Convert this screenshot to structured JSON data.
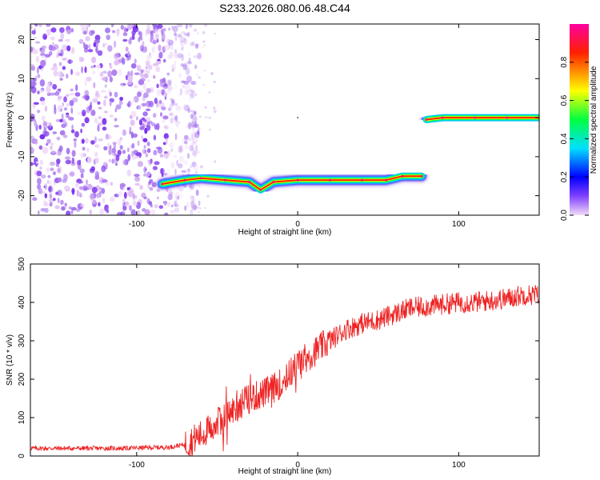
{
  "title": "S233.2026.080.06.48.C44",
  "chart_data": [
    {
      "type": "heatmap",
      "xlabel": "Height of straight line (km)",
      "ylabel": "Frequency (Hz)",
      "xlim": [
        -166,
        150
      ],
      "ylim": [
        -25,
        24
      ],
      "x_ticks": [
        -100,
        0,
        100
      ],
      "y_ticks": [
        20,
        10,
        0,
        -10,
        -20
      ],
      "colorbar": {
        "label": "Normalized spectral amplitude",
        "range": [
          0.0,
          1.0
        ],
        "ticks": [
          "0.0",
          "0.2",
          "0.4",
          "0.6",
          "0.8"
        ],
        "colormap": [
          "#f2dcf7",
          "#8040ff",
          "#0000ff",
          "#00e0ff",
          "#00ff40",
          "#ffff00",
          "#ff2000",
          "#ff00a0"
        ]
      },
      "ridge": [
        {
          "x": -84,
          "y": -17
        },
        {
          "x": -70,
          "y": -16
        },
        {
          "x": -60,
          "y": -15.5
        },
        {
          "x": -45,
          "y": -16
        },
        {
          "x": -30,
          "y": -16.5
        },
        {
          "x": -23,
          "y": -18.5
        },
        {
          "x": -15,
          "y": -16.5
        },
        {
          "x": 0,
          "y": -16
        },
        {
          "x": 20,
          "y": -16
        },
        {
          "x": 40,
          "y": -16
        },
        {
          "x": 55,
          "y": -16
        },
        {
          "x": 65,
          "y": -15
        },
        {
          "x": 77,
          "y": -15
        },
        {
          "x": 80,
          "y": -0.5
        },
        {
          "x": 90,
          "y": 0
        },
        {
          "x": 110,
          "y": 0
        },
        {
          "x": 130,
          "y": 0
        },
        {
          "x": 150,
          "y": 0
        }
      ],
      "noise_region": {
        "x": [
          -166,
          -66
        ],
        "y": [
          -25,
          24
        ]
      }
    },
    {
      "type": "line",
      "xlabel": "Height of straight line (km)",
      "ylabel": "SNR (10 * v/v)",
      "xlim": [
        -166,
        150
      ],
      "ylim": [
        0,
        500
      ],
      "x_ticks": [
        -100,
        0,
        100
      ],
      "y_ticks": [
        0,
        100,
        200,
        300,
        400,
        500
      ],
      "color": "#ee2222",
      "series": [
        {
          "x": [
            -166,
            -150,
            -130,
            -110,
            -90,
            -80,
            -70,
            -60,
            -50,
            -40,
            -30,
            -20,
            -10,
            0,
            10,
            20,
            30,
            40,
            50,
            60,
            70,
            80,
            90,
            100,
            110,
            120,
            130,
            140,
            150
          ],
          "values": [
            20,
            20,
            20,
            20,
            22,
            23,
            30,
            55,
            85,
            120,
            150,
            165,
            190,
            240,
            270,
            300,
            330,
            345,
            355,
            370,
            385,
            390,
            395,
            400,
            400,
            405,
            410,
            420,
            420
          ]
        }
      ]
    }
  ]
}
